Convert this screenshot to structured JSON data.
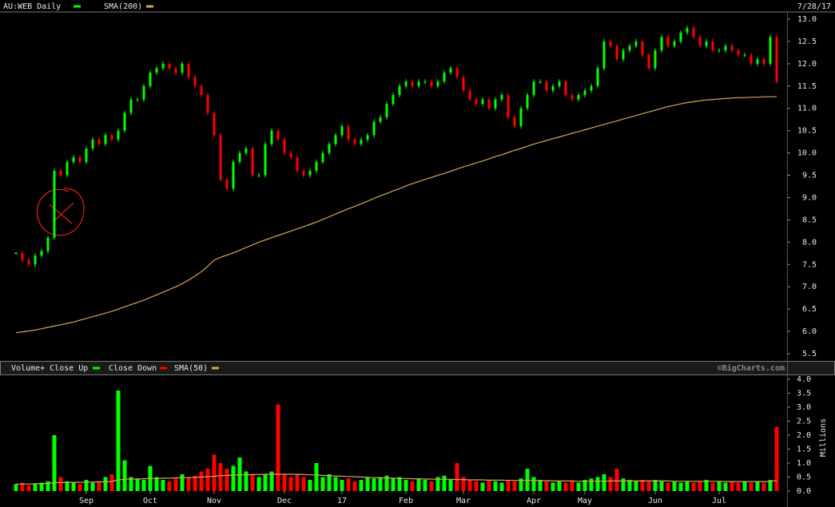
{
  "chart_data": [
    {
      "type": "candlestick",
      "title": "AU:WEB Daily",
      "date_label": "7/28/17",
      "categories": [
        null,
        null,
        null,
        null,
        null,
        null,
        null,
        null,
        null,
        null,
        null,
        "Sep",
        null,
        null,
        null,
        null,
        null,
        null,
        null,
        null,
        null,
        "Oct",
        null,
        null,
        null,
        null,
        null,
        null,
        null,
        null,
        null,
        "Nov",
        null,
        null,
        null,
        null,
        null,
        null,
        null,
        null,
        null,
        null,
        "Dec",
        null,
        null,
        null,
        null,
        null,
        null,
        null,
        null,
        "17",
        null,
        null,
        null,
        null,
        null,
        null,
        null,
        null,
        null,
        "Feb",
        null,
        null,
        null,
        null,
        null,
        null,
        null,
        null,
        "Mar",
        null,
        null,
        null,
        null,
        null,
        null,
        null,
        null,
        null,
        null,
        "Apr",
        null,
        null,
        null,
        null,
        null,
        null,
        null,
        "May",
        null,
        null,
        null,
        null,
        null,
        null,
        null,
        null,
        null,
        null,
        "Jun",
        null,
        null,
        null,
        null,
        null,
        null,
        null,
        null,
        null,
        "Jul",
        null,
        null,
        null,
        null,
        null,
        null,
        null,
        null,
        null
      ],
      "series": [
        {
          "name": "AU:WEB Daily",
          "color": "#00ff00",
          "down_color": "#ff0000",
          "values": [
            7.75,
            7.6,
            7.5,
            7.7,
            7.8,
            8.1,
            9.6,
            9.5,
            9.8,
            9.9,
            9.8,
            10.1,
            10.3,
            10.2,
            10.4,
            10.3,
            10.5,
            10.9,
            11.2,
            11.2,
            11.5,
            11.8,
            11.9,
            12.0,
            11.9,
            11.8,
            12.0,
            11.7,
            11.5,
            11.3,
            10.9,
            10.4,
            9.4,
            9.2,
            9.8,
            10.0,
            10.1,
            9.5,
            9.5,
            10.2,
            10.5,
            10.3,
            10.0,
            9.9,
            9.6,
            9.5,
            9.6,
            9.8,
            10.0,
            10.2,
            10.4,
            10.6,
            10.3,
            10.2,
            10.3,
            10.4,
            10.7,
            10.8,
            11.1,
            11.3,
            11.5,
            11.6,
            11.5,
            11.6,
            11.6,
            11.5,
            11.6,
            11.8,
            11.9,
            11.7,
            11.4,
            11.2,
            11.1,
            11.2,
            11.0,
            11.2,
            11.3,
            10.8,
            10.6,
            11.0,
            11.3,
            11.6,
            11.6,
            11.4,
            11.5,
            11.6,
            11.3,
            11.2,
            11.3,
            11.4,
            11.5,
            11.9,
            12.5,
            12.4,
            12.1,
            12.3,
            12.4,
            12.5,
            12.2,
            11.9,
            12.3,
            12.6,
            12.4,
            12.5,
            12.7,
            12.8,
            12.6,
            12.4,
            12.5,
            12.3,
            12.3,
            12.4,
            12.3,
            12.2,
            12.2,
            12.0,
            12.1,
            12.0,
            12.6,
            11.6
          ]
        },
        {
          "name": "SMA(200)",
          "color": "#d9a55a",
          "values": [
            5.97,
            5.99,
            6.01,
            6.03,
            6.06,
            6.09,
            6.12,
            6.15,
            6.18,
            6.21,
            6.25,
            6.29,
            6.33,
            6.37,
            6.41,
            6.45,
            6.5,
            6.55,
            6.6,
            6.65,
            6.7,
            6.76,
            6.82,
            6.88,
            6.94,
            7.0,
            7.07,
            7.15,
            7.24,
            7.34,
            7.46,
            7.6,
            7.66,
            7.71,
            7.76,
            7.82,
            7.88,
            7.94,
            8.0,
            8.05,
            8.1,
            8.15,
            8.2,
            8.25,
            8.3,
            8.35,
            8.4,
            8.45,
            8.51,
            8.57,
            8.63,
            8.69,
            8.75,
            8.8,
            8.86,
            8.92,
            8.98,
            9.04,
            9.09,
            9.15,
            9.2,
            9.26,
            9.31,
            9.36,
            9.41,
            9.45,
            9.5,
            9.54,
            9.59,
            9.64,
            9.69,
            9.73,
            9.78,
            9.82,
            9.87,
            9.92,
            9.96,
            10.01,
            10.06,
            10.1,
            10.15,
            10.2,
            10.24,
            10.28,
            10.32,
            10.36,
            10.4,
            10.44,
            10.48,
            10.52,
            10.56,
            10.6,
            10.64,
            10.68,
            10.72,
            10.76,
            10.8,
            10.84,
            10.88,
            10.92,
            10.96,
            11.0,
            11.04,
            11.07,
            11.1,
            11.13,
            11.15,
            11.17,
            11.19,
            11.2,
            11.21,
            11.22,
            11.23,
            11.24,
            11.24,
            11.25,
            11.25,
            11.26,
            11.26,
            11.26
          ]
        }
      ],
      "ylim": [
        5.5,
        13
      ],
      "yticks": [
        {
          "value": 13,
          "label": "13.0"
        },
        12.5,
        {
          "value": 12,
          "label": "12.0"
        },
        11.5,
        {
          "value": 11,
          "label": "11.0"
        },
        10.5,
        {
          "value": 10,
          "label": "10.0"
        },
        9.5,
        {
          "value": 9,
          "label": "9.0"
        },
        8.5,
        {
          "value": 8,
          "label": "8.0"
        },
        7.5,
        {
          "value": 7,
          "label": "7.0"
        },
        6.5,
        {
          "value": 6,
          "label": "6.0"
        },
        5.5
      ]
    },
    {
      "type": "bar",
      "title": "Volume+ Close Up",
      "up_color": "#00ff00",
      "down_label": "Close Down",
      "down_color": "#ff0000",
      "credit": "©BigCharts.com",
      "ylabel": "Millions",
      "values": [
        0.25,
        0.3,
        0.2,
        0.25,
        0.3,
        0.35,
        2.0,
        0.5,
        0.35,
        0.3,
        0.25,
        0.4,
        0.3,
        0.35,
        0.5,
        0.6,
        3.6,
        1.1,
        0.5,
        0.45,
        0.4,
        0.9,
        0.5,
        0.4,
        0.35,
        0.45,
        0.6,
        0.5,
        0.55,
        0.7,
        0.8,
        1.3,
        1.0,
        0.8,
        0.9,
        1.2,
        0.7,
        0.6,
        0.5,
        0.6,
        0.7,
        3.1,
        0.6,
        0.5,
        0.6,
        0.5,
        0.4,
        1.0,
        0.5,
        0.6,
        0.5,
        0.4,
        0.45,
        0.35,
        0.4,
        0.5,
        0.45,
        0.5,
        0.55,
        0.45,
        0.5,
        0.4,
        0.35,
        0.45,
        0.4,
        0.35,
        0.5,
        0.55,
        0.4,
        1.0,
        0.5,
        0.4,
        0.35,
        0.3,
        0.4,
        0.35,
        0.3,
        0.4,
        0.35,
        0.45,
        0.8,
        0.5,
        0.4,
        0.35,
        0.3,
        0.35,
        0.3,
        0.35,
        0.3,
        0.4,
        0.45,
        0.5,
        0.6,
        0.5,
        0.8,
        0.45,
        0.4,
        0.35,
        0.4,
        0.35,
        0.4,
        0.35,
        0.3,
        0.35,
        0.3,
        0.35,
        0.3,
        0.35,
        0.4,
        0.3,
        0.35,
        0.3,
        0.35,
        0.3,
        0.35,
        0.3,
        0.35,
        0.3,
        0.4,
        2.3
      ],
      "series": [
        {
          "name": "SMA(50)",
          "color": "#d9a55a",
          "values": [
            0.25,
            0.25,
            0.25,
            0.26,
            0.26,
            0.27,
            0.3,
            0.3,
            0.31,
            0.31,
            0.31,
            0.32,
            0.32,
            0.33,
            0.33,
            0.34,
            0.4,
            0.42,
            0.43,
            0.43,
            0.44,
            0.45,
            0.45,
            0.46,
            0.46,
            0.47,
            0.48,
            0.48,
            0.49,
            0.5,
            0.51,
            0.53,
            0.55,
            0.56,
            0.57,
            0.58,
            0.58,
            0.59,
            0.59,
            0.6,
            0.6,
            0.6,
            0.6,
            0.6,
            0.6,
            0.59,
            0.58,
            0.57,
            0.56,
            0.55,
            0.54,
            0.53,
            0.52,
            0.51,
            0.5,
            0.49,
            0.48,
            0.47,
            0.46,
            0.46,
            0.45,
            0.45,
            0.44,
            0.44,
            0.43,
            0.43,
            0.42,
            0.42,
            0.42,
            0.41,
            0.41,
            0.4,
            0.4,
            0.4,
            0.39,
            0.39,
            0.39,
            0.38,
            0.38,
            0.38,
            0.38,
            0.37,
            0.37,
            0.37,
            0.36,
            0.36,
            0.36,
            0.36,
            0.35,
            0.35,
            0.35,
            0.35,
            0.35,
            0.36,
            0.36,
            0.36,
            0.36,
            0.36,
            0.36,
            0.36,
            0.36,
            0.36,
            0.36,
            0.35,
            0.35,
            0.35,
            0.35,
            0.35,
            0.35,
            0.35,
            0.35,
            0.34,
            0.34,
            0.34,
            0.34,
            0.34,
            0.34,
            0.34,
            0.34,
            0.38
          ]
        }
      ],
      "ylim": [
        0,
        4
      ],
      "yticks": [
        {
          "value": 4,
          "label": "4.0"
        },
        3.5,
        {
          "value": 3,
          "label": "3.0"
        },
        2.5,
        {
          "value": 2,
          "label": "2.0"
        },
        1.5,
        {
          "value": 1,
          "label": "1.0"
        },
        0.5,
        {
          "value": 0,
          "label": "0.0"
        }
      ]
    }
  ]
}
